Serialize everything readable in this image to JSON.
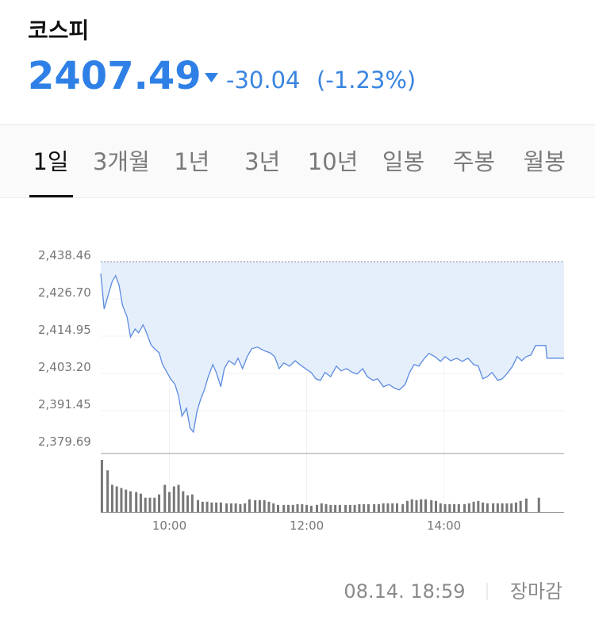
{
  "header": {
    "title": "코스피",
    "price": "2407.49",
    "change": "-30.04",
    "change_pct": "(-1.23%)"
  },
  "tabs": [
    "1일",
    "3개월",
    "1년",
    "3년",
    "10년",
    "일봉",
    "주봉",
    "월봉"
  ],
  "selected_tab": 0,
  "chart_data": {
    "type": "line",
    "color": "#5b8be0",
    "fill": "#e5eefb",
    "grid": true,
    "x": [
      540,
      543,
      547,
      550,
      553,
      556,
      559,
      563,
      566,
      570,
      573,
      577,
      580,
      584,
      587,
      591,
      594,
      598,
      601,
      605,
      608,
      611,
      615,
      618,
      621,
      624,
      627,
      631,
      634,
      638,
      641,
      645,
      648,
      652,
      657,
      660,
      664,
      668,
      672,
      677,
      682,
      688,
      692,
      696,
      700,
      705,
      710,
      714,
      719,
      724,
      728,
      732,
      736,
      741,
      746,
      750,
      755,
      760,
      764,
      769,
      773,
      778,
      782,
      787,
      792,
      797,
      801,
      806,
      810,
      814,
      818,
      823,
      827,
      832,
      837,
      841,
      846,
      851,
      856,
      861,
      866,
      870,
      874,
      878,
      882,
      887,
      891,
      896,
      900,
      904,
      908,
      912,
      916,
      920,
      929,
      930,
      945
    ],
    "values": [
      2434.7,
      2423.5,
      2428.5,
      2432.2,
      2434.0,
      2431.0,
      2424.7,
      2421.0,
      2414.7,
      2417.2,
      2416.0,
      2418.5,
      2416.0,
      2412.2,
      2411.0,
      2409.7,
      2406.0,
      2403.5,
      2401.5,
      2399.7,
      2396.0,
      2389.7,
      2392.2,
      2386.0,
      2384.7,
      2391.0,
      2394.7,
      2398.5,
      2402.2,
      2406.0,
      2403.5,
      2399.0,
      2404.7,
      2407.2,
      2406.0,
      2408.0,
      2404.7,
      2408.5,
      2411.0,
      2411.5,
      2410.5,
      2409.7,
      2408.5,
      2404.7,
      2406.5,
      2405.5,
      2407.2,
      2406.0,
      2404.7,
      2403.5,
      2401.5,
      2401.0,
      2403.5,
      2402.2,
      2405.5,
      2404.0,
      2404.7,
      2403.5,
      2403.0,
      2404.7,
      2402.2,
      2401.0,
      2401.5,
      2399.0,
      2399.7,
      2398.5,
      2398.0,
      2399.7,
      2403.5,
      2406.0,
      2405.5,
      2408.0,
      2409.5,
      2408.5,
      2407.0,
      2408.5,
      2407.2,
      2408.0,
      2407.0,
      2408.0,
      2406.0,
      2405.5,
      2401.5,
      2402.2,
      2403.5,
      2401.0,
      2401.5,
      2403.5,
      2405.5,
      2408.5,
      2407.2,
      2408.5,
      2409.0,
      2412.0,
      2412.0,
      2408.0,
      2408.0
    ],
    "xlim": [
      540,
      945
    ],
    "ylim": [
      2379.69,
      2438.46
    ],
    "yticks": [
      {
        "value": 2438.46,
        "label": "2,438.46"
      },
      {
        "value": 2426.7,
        "label": "2,426.70"
      },
      {
        "value": 2414.95,
        "label": "2,414.95"
      },
      {
        "value": 2403.2,
        "label": "2,403.20"
      },
      {
        "value": 2391.45,
        "label": "2,391.45"
      },
      {
        "value": 2379.69,
        "label": "2,379.69"
      }
    ],
    "xticks": [
      {
        "value": 600,
        "label": "10:00"
      },
      {
        "value": 720,
        "label": "12:00"
      },
      {
        "value": 840,
        "label": "14:00"
      }
    ],
    "volume": {
      "color": "#777777",
      "x": [
        541,
        546,
        550,
        554,
        558,
        562,
        566,
        571,
        575,
        579,
        583,
        587,
        591,
        596,
        600,
        604,
        608,
        612,
        616,
        620,
        625,
        629,
        633,
        637,
        641,
        645,
        650,
        654,
        658,
        662,
        666,
        670,
        675,
        679,
        683,
        687,
        691,
        695,
        700,
        704,
        708,
        712,
        716,
        720,
        724,
        729,
        733,
        737,
        741,
        745,
        749,
        754,
        758,
        762,
        766,
        770,
        774,
        779,
        783,
        787,
        791,
        795,
        799,
        804,
        808,
        812,
        816,
        820,
        824,
        829,
        833,
        837,
        841,
        845,
        849,
        853,
        858,
        862,
        866,
        870,
        874,
        878,
        883,
        887,
        891,
        895,
        899,
        903,
        907,
        912,
        923
      ],
      "values": [
        65,
        52,
        34,
        32,
        30,
        28,
        26,
        25,
        23,
        18,
        18,
        18,
        22,
        34,
        25,
        32,
        34,
        26,
        21,
        22,
        15,
        13,
        13,
        12,
        12,
        12,
        11,
        11,
        11,
        10,
        11,
        16,
        15,
        15,
        15,
        13,
        11,
        9,
        9,
        9,
        9,
        10,
        10,
        9,
        8,
        9,
        11,
        10,
        9,
        9,
        9,
        9,
        9,
        9,
        10,
        10,
        10,
        10,
        10,
        11,
        11,
        11,
        11,
        10,
        14,
        16,
        15,
        16,
        16,
        15,
        14,
        11,
        10,
        10,
        10,
        10,
        10,
        11,
        13,
        14,
        12,
        11,
        11,
        11,
        11,
        11,
        11,
        12,
        14,
        17,
        18
      ]
    }
  },
  "footer": {
    "timestamp": "08.14. 18:59",
    "status": "장마감"
  }
}
